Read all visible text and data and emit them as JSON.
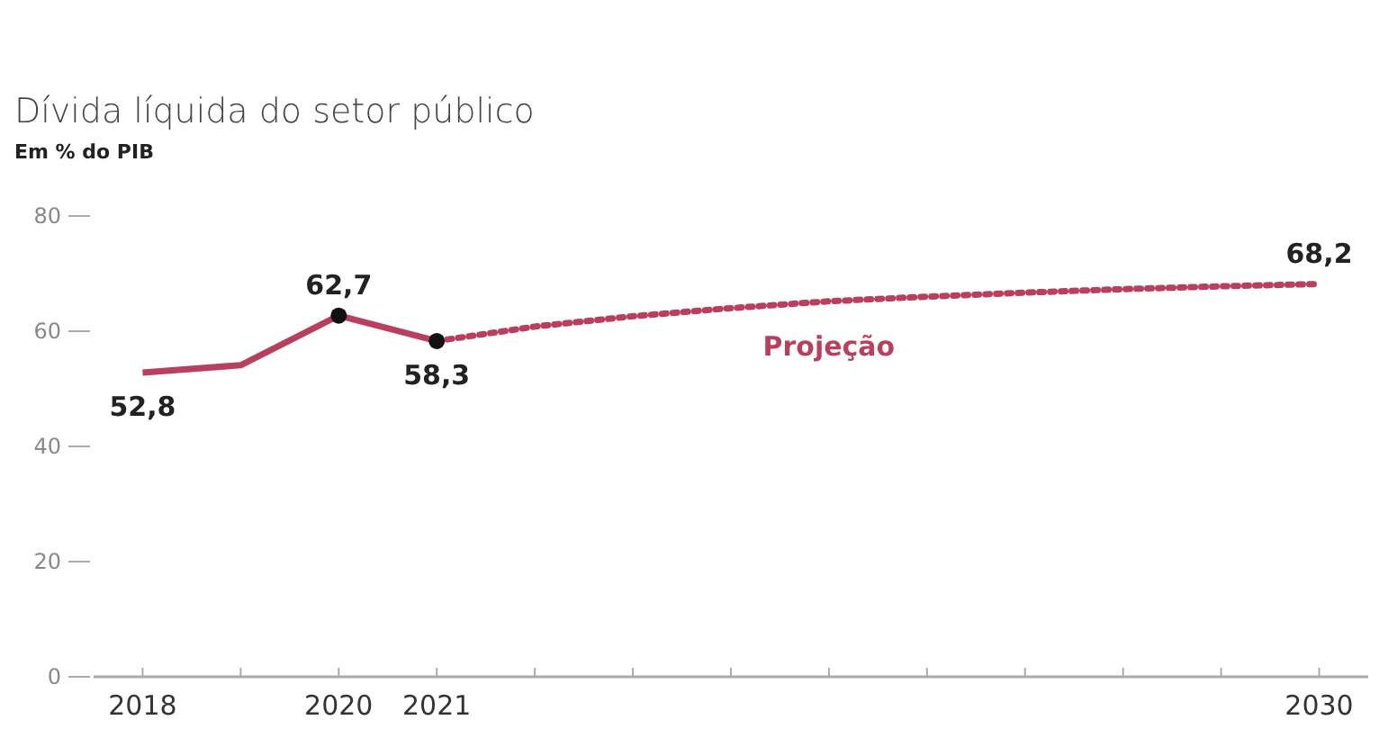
{
  "chart_data": {
    "type": "line",
    "title": "Dívida líquida do setor público",
    "subtitle": "Em % do PIB",
    "xlim": [
      2017.5,
      2030.5
    ],
    "xticks": [
      2018,
      {
        "value": 2019,
        "label": null
      },
      2020,
      2021,
      {
        "value": 2022,
        "label": null
      },
      {
        "value": 2023,
        "label": null
      },
      {
        "value": 2024,
        "label": null
      },
      {
        "value": 2025,
        "label": null
      },
      {
        "value": 2026,
        "label": null
      },
      {
        "value": 2027,
        "label": null
      },
      {
        "value": 2028,
        "label": null
      },
      {
        "value": 2029,
        "label": null
      },
      2030
    ],
    "ylim": [
      0,
      80
    ],
    "yticks": [
      0,
      20,
      40,
      60,
      80
    ],
    "grid": false,
    "series": [
      {
        "type": "line",
        "color": "#b8405e",
        "line_style": "solid",
        "marker": "none",
        "x": [
          2018,
          2019,
          2020,
          2021
        ],
        "values": [
          52.8,
          54.1,
          62.7,
          58.3
        ],
        "value_labels": [
          "52,8",
          null,
          "62,7",
          "58,3"
        ]
      },
      {
        "name": "Projeção",
        "type": "line",
        "color": "#b8405e",
        "line_style": "dotted",
        "marker": "none",
        "x": [
          2021,
          2022,
          2023,
          2024,
          2025,
          2026,
          2027,
          2028,
          2029,
          2030
        ],
        "values": [
          58.3,
          60.8,
          62.6,
          64,
          65.2,
          66,
          66.7,
          67.3,
          67.8,
          68.2
        ],
        "value_labels": [
          null,
          null,
          null,
          null,
          null,
          null,
          null,
          null,
          null,
          "68,2"
        ]
      },
      {
        "type": "scatter",
        "color": "#111111",
        "marker": "circle",
        "x": [
          2020,
          2021
        ],
        "values": [
          62.7,
          58.3
        ]
      }
    ]
  }
}
